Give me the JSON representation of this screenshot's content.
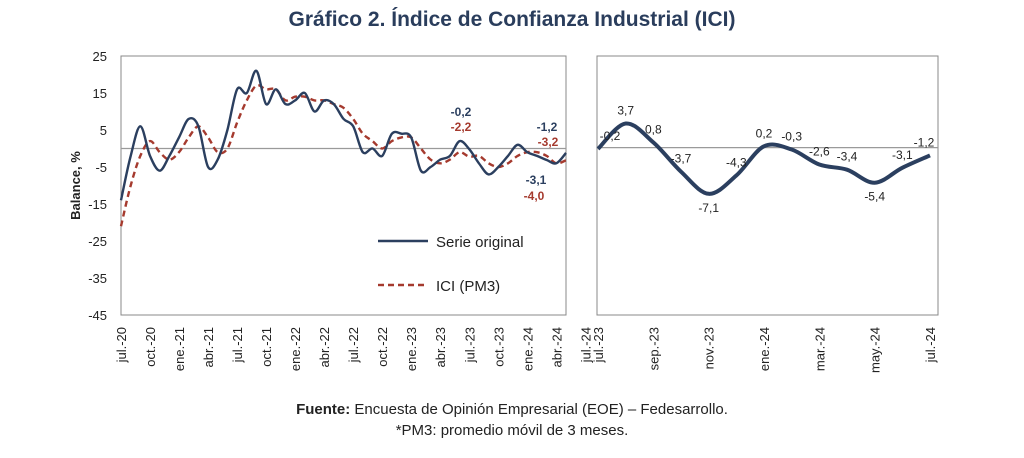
{
  "title": "Gráfico 2. Índice de Confianza Industrial (ICI)",
  "footer": {
    "source_label": "Fuente:",
    "source_text": "Encuesta de Opinión Empresarial (EOE) – Fedesarrollo.",
    "note": "*PM3: promedio móvil de 3 meses."
  },
  "colors": {
    "original": "#2b3f5f",
    "pm3": "#a53a2e",
    "zero_line": "#9a9a9a",
    "frame": "#888888"
  },
  "chart_data": [
    {
      "type": "line",
      "ylabel": "Balance, %",
      "ylim": [
        -45,
        25
      ],
      "yticks": [
        25,
        15,
        5,
        -5,
        -15,
        -25,
        -35,
        -45
      ],
      "x_tick_labels": [
        "jul.-20",
        "oct.-20",
        "ene.-21",
        "abr.-21",
        "jul.-21",
        "oct.-21",
        "ene.-22",
        "abr.-22",
        "jul.-22",
        "oct.-22",
        "ene.-23",
        "abr.-23",
        "jul.-23",
        "oct.-23",
        "ene.-24",
        "abr.-24",
        "jul.-24"
      ],
      "x_start": "jul.-20",
      "legend": {
        "position": "bottom-right",
        "entries": [
          "Serie original",
          "ICI (PM3)"
        ]
      },
      "series": [
        {
          "name": "Serie original",
          "style": "solid",
          "values": [
            -14,
            -2,
            6,
            -2,
            -6,
            -2,
            3,
            8,
            6,
            -5,
            -3,
            5,
            16,
            15,
            21,
            12,
            16,
            12,
            13,
            15,
            10,
            13,
            12,
            8,
            6,
            -1,
            0,
            -2,
            4,
            4,
            3,
            -6,
            -5,
            -3,
            -2,
            2,
            -0.2,
            -4,
            -7,
            -5,
            -2,
            1,
            -1,
            -2,
            -3.1,
            -4,
            -1.2
          ]
        },
        {
          "name": "ICI (PM3)",
          "style": "dashed",
          "values": [
            -21,
            -10,
            -2,
            2,
            -1,
            -3,
            -1,
            3,
            6,
            3,
            -1,
            0,
            7,
            13,
            17,
            16,
            16,
            13,
            14,
            14,
            13,
            13,
            12,
            11,
            8,
            4,
            2,
            0,
            2,
            3,
            3,
            0,
            -3,
            -4,
            -3,
            -1,
            -2.2,
            -2,
            -4,
            -5,
            -4,
            -2,
            -1,
            -1,
            -2,
            -4.0,
            -3.2
          ]
        }
      ],
      "annotations": [
        {
          "text": "-0,2",
          "series": "Serie original"
        },
        {
          "text": "-2,2",
          "series": "ICI (PM3)"
        },
        {
          "text": "-1,2",
          "series": "Serie original"
        },
        {
          "text": "-3,2",
          "series": "ICI (PM3)"
        },
        {
          "text": "-3,1",
          "series": "Serie original"
        },
        {
          "text": "-4,0",
          "series": "ICI (PM3)"
        }
      ]
    },
    {
      "type": "line",
      "ylim": [
        -45,
        25
      ],
      "x_tick_labels": [
        "jul.-23",
        "sep.-23",
        "nov.-23",
        "ene.-24",
        "mar.-24",
        "may.-24",
        "jul.-24"
      ],
      "series": [
        {
          "name": "Serie original",
          "style": "solid",
          "x": [
            "jul.-23",
            "ago.-23",
            "sep.-23",
            "oct.-23",
            "nov.-23",
            "dic.-23",
            "ene.-24",
            "feb.-24",
            "mar.-24",
            "abr.-24",
            "may.-24",
            "jun.-24",
            "jul.-24"
          ],
          "values": [
            -0.2,
            3.7,
            0.8,
            -3.7,
            -7.1,
            -4.3,
            0.2,
            -0.3,
            -2.6,
            -3.4,
            -5.4,
            -3.1,
            -1.2
          ],
          "data_labels": [
            "-0,2",
            "3,7",
            "0,8",
            "-3,7",
            "-7,1",
            "-4,3",
            "0,2",
            "-0,3",
            "-2,6",
            "-3,4",
            "-5,4",
            "-3,1",
            "-1,2"
          ]
        }
      ]
    }
  ]
}
